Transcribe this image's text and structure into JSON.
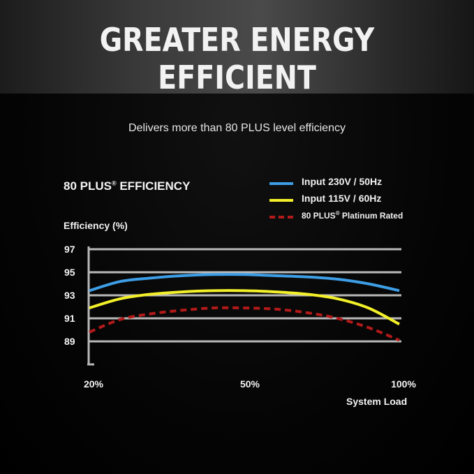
{
  "header": {
    "title": "GREATER ENERGY EFFICIENT"
  },
  "subtitle": "Delivers more than 80 PLUS level efficiency",
  "chart_data": {
    "type": "line",
    "title": "80 PLUS",
    "title_reg": "®",
    "title_rest": " EFFICIENCY",
    "ylabel": "Efficiency (%)",
    "xlabel": "System Load",
    "x_ticks": [
      "20%",
      "50%",
      "100%"
    ],
    "y_ticks": [
      97,
      95,
      93,
      91,
      89
    ],
    "ylim": [
      87,
      97
    ],
    "grid": true,
    "legend_position": "top-right",
    "series": [
      {
        "name": "Input 230V / 50Hz",
        "color": "#3d9ee6",
        "style": "solid",
        "x": [
          0,
          0.1,
          0.2,
          0.3,
          0.4,
          0.5,
          0.6,
          0.7,
          0.8,
          0.9,
          1.0
        ],
        "y": [
          93.4,
          94.2,
          94.5,
          94.7,
          94.8,
          94.8,
          94.7,
          94.6,
          94.4,
          94.0,
          93.4
        ]
      },
      {
        "name": "Input 115V / 60Hz",
        "color": "#f3f02a",
        "style": "solid",
        "x": [
          0,
          0.1,
          0.2,
          0.3,
          0.4,
          0.5,
          0.6,
          0.7,
          0.8,
          0.9,
          1.0
        ],
        "y": [
          91.9,
          92.7,
          93.1,
          93.3,
          93.4,
          93.4,
          93.3,
          93.1,
          92.7,
          91.9,
          90.5
        ]
      },
      {
        "name": "80 PLUS® Platinum Rated",
        "name_main": "80 PLUS",
        "name_reg": "®",
        "name_rest": " Platinum Rated",
        "color": "#b31a1a",
        "style": "dashed",
        "x": [
          0,
          0.1,
          0.2,
          0.3,
          0.4,
          0.5,
          0.6,
          0.7,
          0.8,
          0.9,
          1.0
        ],
        "y": [
          89.8,
          90.9,
          91.4,
          91.7,
          91.9,
          91.9,
          91.8,
          91.5,
          91.0,
          90.2,
          89.1
        ]
      }
    ]
  }
}
